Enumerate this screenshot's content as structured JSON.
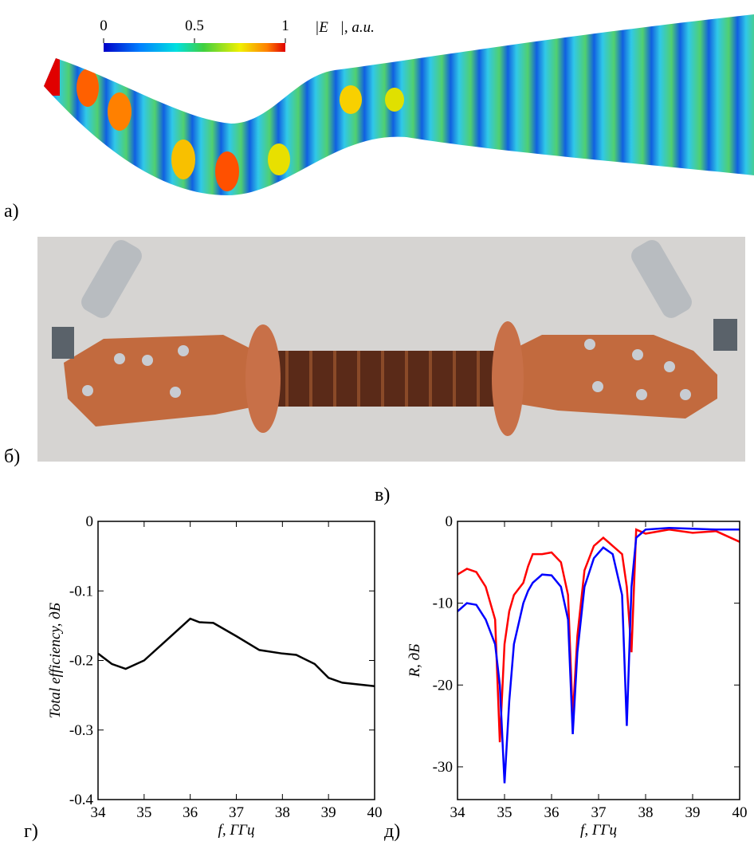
{
  "figure": {
    "panel_labels": [
      "а)",
      "б)",
      "в)",
      "г)",
      "д)"
    ],
    "colorbar": {
      "label": "|E⃗|, a.u.",
      "lim": [
        0,
        1
      ],
      "ticks": [
        0,
        0.5,
        1
      ]
    }
  },
  "chart_data": [
    {
      "type": "line",
      "xlabel": "f, ГГц",
      "ylabel": "Total efficiency, дБ",
      "x": [
        34,
        34.3,
        34.6,
        35,
        35.5,
        36,
        36.2,
        36.5,
        37,
        37.5,
        38,
        38.3,
        38.7,
        39,
        39.3,
        40
      ],
      "series": [
        {
          "color": "#000000",
          "values": [
            -0.19,
            -0.205,
            -0.212,
            -0.2,
            -0.17,
            -0.14,
            -0.145,
            -0.146,
            -0.165,
            -0.185,
            -0.19,
            -0.192,
            -0.205,
            -0.225,
            -0.232,
            -0.237
          ]
        }
      ],
      "xlim": [
        34,
        40
      ],
      "xticks": [
        34,
        35,
        36,
        37,
        38,
        39,
        40
      ],
      "ylim": [
        -0.4,
        0
      ],
      "yticks": [
        0,
        -0.1,
        -0.2,
        -0.3,
        -0.4
      ]
    },
    {
      "type": "line",
      "xlabel": "f, ГГц",
      "ylabel": "R, дБ",
      "x": [
        34,
        34.2,
        34.4,
        34.6,
        34.8,
        34.9,
        35,
        35.1,
        35.2,
        35.4,
        35.5,
        35.6,
        35.8,
        36,
        36.2,
        36.35,
        36.45,
        36.55,
        36.7,
        36.9,
        37.1,
        37.3,
        37.5,
        37.6,
        37.7,
        37.8,
        38,
        38.5,
        39,
        39.5,
        40
      ],
      "series": [
        {
          "color": "#ff0000",
          "values": [
            -6.5,
            -5.8,
            -6.2,
            -8,
            -12,
            -27,
            -15,
            -11,
            -9,
            -7.5,
            -5.5,
            -4,
            -4,
            -3.8,
            -5,
            -9,
            -24,
            -14,
            -6,
            -3,
            -2,
            -3,
            -4,
            -8,
            -16,
            -1,
            -1.5,
            -1,
            -1.4,
            -1.2,
            -2.5
          ]
        },
        {
          "color": "#0000ff",
          "values": [
            -11,
            -10,
            -10.2,
            -12,
            -15,
            -20,
            -32,
            -22,
            -15,
            -10,
            -8.5,
            -7.5,
            -6.5,
            -6.6,
            -8,
            -12,
            -26,
            -16,
            -8,
            -4.5,
            -3.2,
            -4,
            -9,
            -25,
            -8,
            -2,
            -1,
            -0.8,
            -0.9,
            -1,
            -1
          ]
        }
      ],
      "xlim": [
        34,
        40
      ],
      "xticks": [
        34,
        35,
        36,
        37,
        38,
        39,
        40
      ],
      "ylim": [
        -34,
        0
      ],
      "yticks": [
        0,
        -10,
        -20,
        -30
      ]
    }
  ]
}
